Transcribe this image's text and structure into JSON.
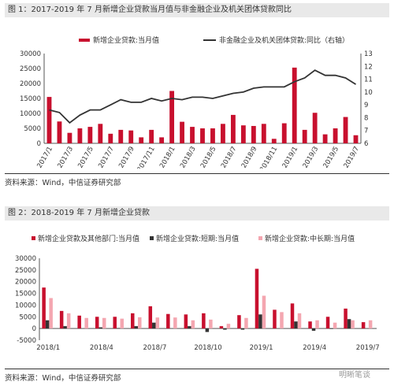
{
  "figure1": {
    "title": "图 1：2017-2019 年 7 月新增企业贷款当月值与非金融企业及机关团体贷款同比",
    "source": "资料来源：Wind，中信证券研究部"
  },
  "figure2": {
    "title": "图 2：2018-2019 年 7 月新增企业贷款",
    "source": "资料来源：Wind，中信证券研究部"
  },
  "watermark": "明晰笔谈",
  "colors": {
    "red": "#c8102e",
    "dark": "#333333",
    "pink": "#f4a6b0"
  },
  "chart_data": [
    {
      "type": "bar+line",
      "x": [
        "2017/1",
        "2017/2",
        "2017/3",
        "2017/4",
        "2017/5",
        "2017/6",
        "2017/7",
        "2017/8",
        "2017/9",
        "2017/10",
        "2017/11",
        "2017/12",
        "2018/1",
        "2018/2",
        "2018/3",
        "2018/4",
        "2018/5",
        "2018/6",
        "2018/7",
        "2018/8",
        "2018/9",
        "2018/10",
        "2018/11",
        "2018/12",
        "2019/1",
        "2019/2",
        "2019/3",
        "2019/4",
        "2019/5",
        "2019/6",
        "2019/7"
      ],
      "tick_labels": [
        "2017/1",
        "2017/3",
        "2017/5",
        "2017/7",
        "2017/9",
        "2017/11",
        "2018/1",
        "2018/3",
        "2018/5",
        "2018/7",
        "2018/9",
        "2018/11",
        "2019/1",
        "2019/3",
        "2019/5",
        "2019/7"
      ],
      "series": [
        {
          "name": "新增企业贷款:当月值",
          "kind": "bar",
          "axis": "left",
          "color": "#c8102e",
          "values": [
            15500,
            7300,
            3500,
            5000,
            5500,
            6500,
            3200,
            4500,
            4300,
            2000,
            4500,
            2000,
            17500,
            7200,
            5500,
            5000,
            5000,
            6500,
            9500,
            6000,
            5800,
            6500,
            1500,
            6700,
            25300,
            4500,
            10200,
            3000,
            5000,
            8800,
            2700
          ]
        },
        {
          "name": "非金融企业及机关团体贷款:同比（右轴）",
          "kind": "line",
          "axis": "right",
          "color": "#333333",
          "values": [
            8.6,
            8.4,
            7.6,
            8.2,
            8.6,
            8.6,
            9.0,
            9.4,
            9.2,
            9.2,
            9.5,
            9.3,
            9.5,
            9.4,
            9.6,
            9.6,
            9.5,
            9.7,
            9.9,
            10.0,
            10.3,
            10.4,
            10.4,
            10.4,
            10.8,
            11.1,
            11.7,
            11.3,
            11.3,
            11.1,
            10.6
          ]
        }
      ],
      "y_left": {
        "ticks": [
          0,
          5000,
          10000,
          15000,
          20000,
          25000,
          30000
        ],
        "lim": [
          0,
          30000
        ]
      },
      "y_right": {
        "ticks": [
          6,
          7,
          8,
          9,
          10,
          11,
          12,
          13
        ],
        "lim": [
          6,
          13
        ]
      },
      "legend": "top"
    },
    {
      "type": "bar",
      "x": [
        "2018/1",
        "2018/2",
        "2018/3",
        "2018/4",
        "2018/5",
        "2018/6",
        "2018/7",
        "2018/8",
        "2018/9",
        "2018/10",
        "2018/11",
        "2018/12",
        "2019/1",
        "2019/2",
        "2019/3",
        "2019/4",
        "2019/5",
        "2019/6",
        "2019/7"
      ],
      "tick_labels": [
        "2018/1",
        "2018/4",
        "2018/7",
        "2018/10",
        "2019/1",
        "2019/4",
        "2019/7"
      ],
      "series": [
        {
          "name": "新增企业贷款及其他部门:当月值",
          "color": "#c8102e",
          "values": [
            17500,
            7500,
            5500,
            5000,
            5000,
            6500,
            9500,
            6200,
            6000,
            6500,
            1000,
            5700,
            25500,
            8000,
            10700,
            3000,
            5000,
            8500,
            2700
          ]
        },
        {
          "name": "新增企业贷款:短期:当月值",
          "color": "#333333",
          "values": [
            3500,
            1000,
            0,
            500,
            200,
            1000,
            2500,
            0,
            1000,
            -1500,
            -500,
            -500,
            6000,
            0,
            3000,
            -1000,
            -200,
            4000,
            0
          ]
        },
        {
          "name": "新增企业贷款:中长期:当月值",
          "color": "#f4a6b0",
          "values": [
            13000,
            6500,
            4500,
            4500,
            4200,
            4800,
            4700,
            4700,
            3500,
            3800,
            2000,
            4500,
            14000,
            7000,
            6500,
            3500,
            2500,
            3500,
            3500
          ]
        }
      ],
      "y": {
        "ticks": [
          -5000,
          0,
          5000,
          10000,
          15000,
          20000,
          25000,
          30000
        ],
        "lim": [
          -5000,
          30000
        ]
      },
      "legend": "top"
    }
  ]
}
